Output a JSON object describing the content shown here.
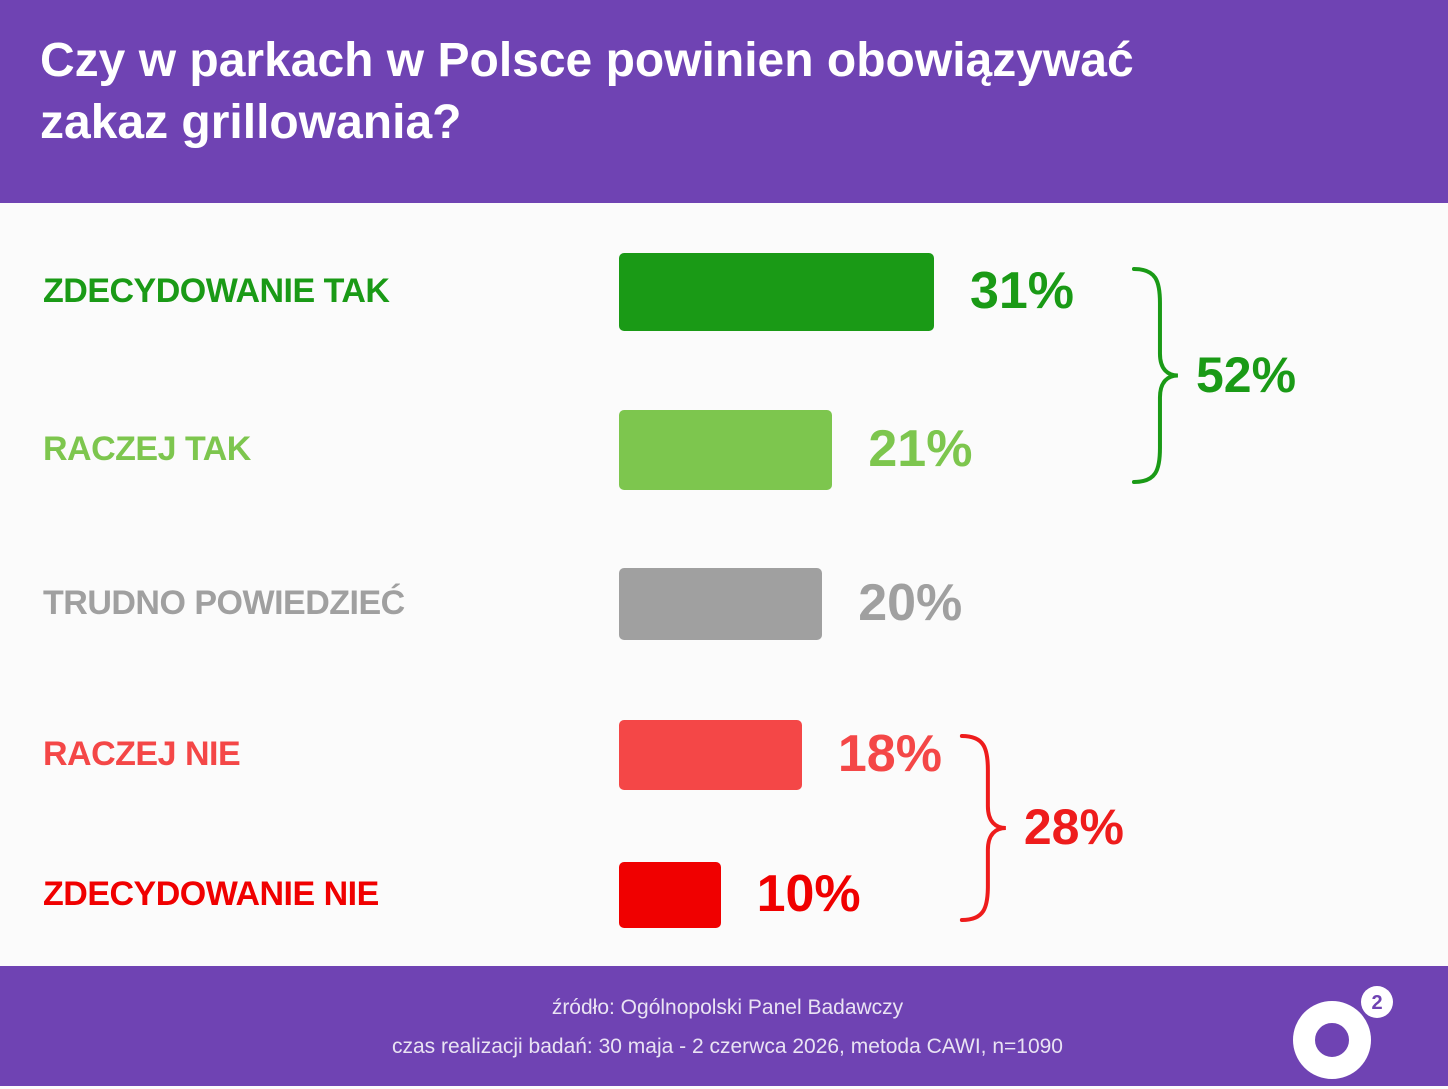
{
  "title": "Czy w parkach w Polsce powinien obowiązywać zakaz grillowania?",
  "chart_data": {
    "type": "bar",
    "orientation": "horizontal",
    "categories": [
      "ZDECYDOWANIE TAK",
      "RACZEJ TAK",
      "TRUDNO POWIEDZIEĆ",
      "RACZEJ NIE",
      "ZDECYDOWANIE NIE"
    ],
    "values": [
      31,
      21,
      20,
      18,
      10
    ],
    "value_labels": [
      "31%",
      "21%",
      "20%",
      "18%",
      "10%"
    ],
    "colors": [
      "#1a9a16",
      "#7dc64e",
      "#a0a0a0",
      "#f44747",
      "#f00000"
    ],
    "groups": [
      {
        "label": "52%",
        "value": 52,
        "members": [
          0,
          1
        ],
        "color": "#1a9a16"
      },
      {
        "label": "28%",
        "value": 28,
        "members": [
          3,
          4
        ],
        "color": "#ee1c1c"
      }
    ],
    "unit": "%",
    "grid": false,
    "legend": "none"
  },
  "footer": {
    "source": "źródło: Ogólnopolski Panel Badawczy",
    "method": "czas realizacji badań: 30 maja - 2 czerwca 2026, metoda CAWI, n=1090"
  },
  "logo": {
    "icon": "o2-logo-icon",
    "superscript": "2",
    "color": "#ffffff",
    "accent": "#6f43b3"
  }
}
